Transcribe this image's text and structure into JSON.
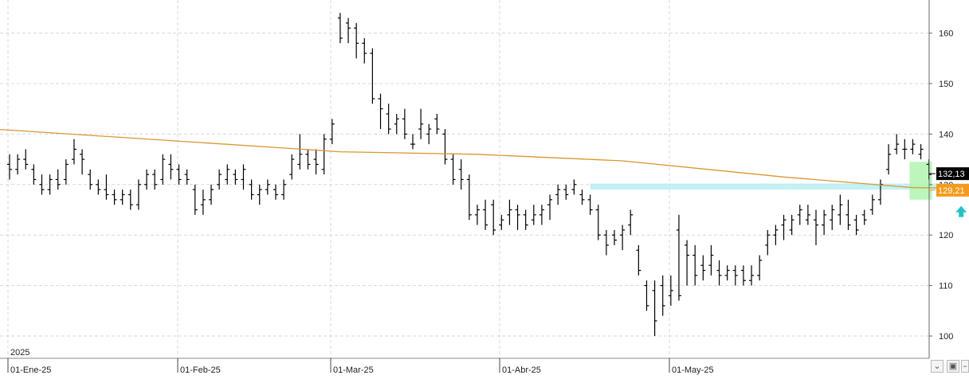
{
  "chart_data": {
    "type": "ohlc",
    "y_axis": {
      "ylim": [
        96,
        166
      ],
      "ticks": [
        100,
        110,
        120,
        130,
        140,
        150,
        160
      ],
      "position": "right"
    },
    "x_axis": {
      "year_label": "2025",
      "month_labels": [
        "01-Ene-25",
        "01-Feb-25",
        "01-Mar-25",
        "01-Abr-25",
        "01-May-25"
      ],
      "month_start_index": [
        1,
        22,
        41,
        62,
        83
      ]
    },
    "ohlc": [
      [
        134,
        136,
        131,
        133
      ],
      [
        133,
        136,
        132,
        135
      ],
      [
        135,
        137,
        133,
        134
      ],
      [
        133,
        134,
        130,
        131
      ],
      [
        130,
        132,
        128,
        129
      ],
      [
        129,
        132,
        128,
        131
      ],
      [
        131,
        133,
        129,
        130
      ],
      [
        131,
        135,
        130,
        134
      ],
      [
        135,
        139,
        134,
        137
      ],
      [
        136,
        137,
        132,
        135
      ],
      [
        132,
        133,
        129,
        130
      ],
      [
        130,
        131,
        128,
        129
      ],
      [
        129,
        132,
        127,
        128
      ],
      [
        128,
        129,
        126,
        127
      ],
      [
        127,
        129,
        126,
        128
      ],
      [
        128,
        129,
        125,
        126
      ],
      [
        126,
        131,
        125,
        130
      ],
      [
        130,
        133,
        129,
        132
      ],
      [
        132,
        133,
        129,
        130
      ],
      [
        131,
        136,
        130,
        135
      ],
      [
        134,
        136,
        131,
        133
      ],
      [
        133,
        134,
        130,
        131
      ],
      [
        132,
        133,
        130,
        131
      ],
      [
        129,
        130,
        124,
        125
      ],
      [
        126,
        129,
        124,
        127
      ],
      [
        127,
        130,
        126,
        129
      ],
      [
        130,
        133,
        129,
        132
      ],
      [
        131,
        134,
        130,
        133
      ],
      [
        132,
        133,
        130,
        131
      ],
      [
        131,
        134,
        129,
        133
      ],
      [
        130,
        131,
        127,
        128
      ],
      [
        128,
        130,
        126,
        129
      ],
      [
        129,
        131,
        128,
        130
      ],
      [
        129,
        130,
        127,
        128
      ],
      [
        128,
        131,
        127,
        130
      ],
      [
        132,
        136,
        131,
        135
      ],
      [
        134,
        140,
        133,
        136
      ],
      [
        136,
        137,
        133,
        134
      ],
      [
        135,
        137,
        132,
        134
      ],
      [
        133,
        140,
        132,
        139
      ],
      [
        139,
        143,
        138,
        142
      ],
      [
        163,
        164,
        158,
        159
      ],
      [
        162,
        163,
        158,
        161
      ],
      [
        161,
        162,
        155,
        158
      ],
      [
        158,
        159,
        154,
        156
      ],
      [
        156,
        157,
        146,
        147
      ],
      [
        147,
        148,
        141,
        145
      ],
      [
        144,
        146,
        140,
        141
      ],
      [
        142,
        144,
        140,
        143
      ],
      [
        143,
        145,
        139,
        140
      ],
      [
        138,
        140,
        137,
        138
      ],
      [
        141,
        145,
        139,
        142
      ],
      [
        140,
        142,
        138,
        141
      ],
      [
        143,
        144,
        140,
        141
      ],
      [
        140,
        141,
        134,
        135
      ],
      [
        135,
        136,
        130,
        131
      ],
      [
        133,
        135,
        129,
        131
      ],
      [
        131,
        132,
        123,
        124
      ],
      [
        124,
        126,
        122,
        125
      ],
      [
        125,
        127,
        121,
        122
      ],
      [
        126,
        127,
        120,
        121
      ],
      [
        122,
        124,
        121,
        123
      ],
      [
        124,
        127,
        122,
        125
      ],
      [
        125,
        126,
        121,
        124
      ],
      [
        124,
        125,
        121,
        122
      ],
      [
        123,
        126,
        122,
        124
      ],
      [
        124,
        126,
        122,
        125
      ],
      [
        126,
        128,
        123,
        127
      ],
      [
        128,
        130,
        126,
        129
      ],
      [
        129,
        130,
        127,
        128
      ],
      [
        129,
        131,
        128,
        130
      ],
      [
        128,
        129,
        126,
        127
      ],
      [
        127,
        128,
        124,
        125
      ],
      [
        125,
        126,
        119,
        120
      ],
      [
        120,
        121,
        116,
        118
      ],
      [
        120,
        121,
        118,
        119
      ],
      [
        120,
        122,
        117,
        121
      ],
      [
        122,
        125,
        120,
        124
      ],
      [
        117,
        118,
        112,
        113
      ],
      [
        110,
        111,
        105,
        106
      ],
      [
        109,
        111,
        100,
        103
      ],
      [
        110,
        112,
        104,
        106
      ],
      [
        108,
        112,
        106,
        109
      ],
      [
        121,
        124,
        107,
        108
      ],
      [
        118,
        119,
        110,
        116
      ],
      [
        116,
        118,
        110,
        112
      ],
      [
        114,
        116,
        111,
        113
      ],
      [
        114,
        118,
        112,
        116
      ],
      [
        113,
        115,
        110,
        112
      ],
      [
        112,
        114,
        111,
        113
      ],
      [
        113,
        114,
        110,
        112
      ],
      [
        113,
        114,
        110,
        111
      ],
      [
        111,
        114,
        110,
        112
      ],
      [
        112,
        116,
        111,
        115
      ],
      [
        118,
        121,
        116,
        120
      ],
      [
        120,
        122,
        118,
        121
      ],
      [
        122,
        124,
        119,
        123
      ],
      [
        121,
        124,
        120,
        123
      ],
      [
        124,
        126,
        122,
        125
      ],
      [
        123,
        126,
        122,
        124
      ],
      [
        123,
        125,
        118,
        122
      ],
      [
        122,
        125,
        120,
        124
      ],
      [
        123,
        126,
        121,
        125
      ],
      [
        124,
        128,
        122,
        126
      ],
      [
        124,
        127,
        121,
        122
      ],
      [
        123,
        124,
        120,
        121
      ],
      [
        124,
        125,
        122,
        123
      ],
      [
        125,
        128,
        124,
        127
      ],
      [
        127,
        131,
        126,
        130
      ],
      [
        133,
        138,
        132,
        136
      ],
      [
        137,
        140,
        136,
        138
      ],
      [
        137,
        139,
        135,
        137
      ],
      [
        137,
        139,
        136,
        138
      ],
      [
        136,
        138,
        135,
        137
      ],
      [
        134,
        135,
        131,
        132
      ]
    ],
    "moving_average": [
      {
        "index": -2,
        "value": 141.0
      },
      {
        "index": 20,
        "value": 138.7
      },
      {
        "index": 41,
        "value": 136.5
      },
      {
        "index": 58,
        "value": 136.0
      },
      {
        "index": 76,
        "value": 134.7
      },
      {
        "index": 96,
        "value": 131.5
      },
      {
        "index": 112,
        "value": 129.4
      },
      {
        "index": 122,
        "value": 129.2
      }
    ],
    "price_label": {
      "value": "132,13",
      "color": "#000000"
    },
    "ma_label": {
      "value": "129,21",
      "color": "#f59a1b"
    },
    "colors": {
      "bars": "#000000",
      "moving_average": "#d9962f",
      "support_band": "#b8eef2",
      "highlight": "#b6f5b6",
      "arrow": "#27c2c4"
    },
    "support_band": {
      "y_low": 129.0,
      "y_high": 130.2,
      "x_start_index": 72,
      "x_end_index": 122
    },
    "highlight": {
      "y_low": 127.0,
      "y_high": 134.5,
      "x_start_index": 112,
      "x_end_index": 114
    },
    "arrow": {
      "index": 118,
      "y": 124.5,
      "direction": "up"
    }
  }
}
